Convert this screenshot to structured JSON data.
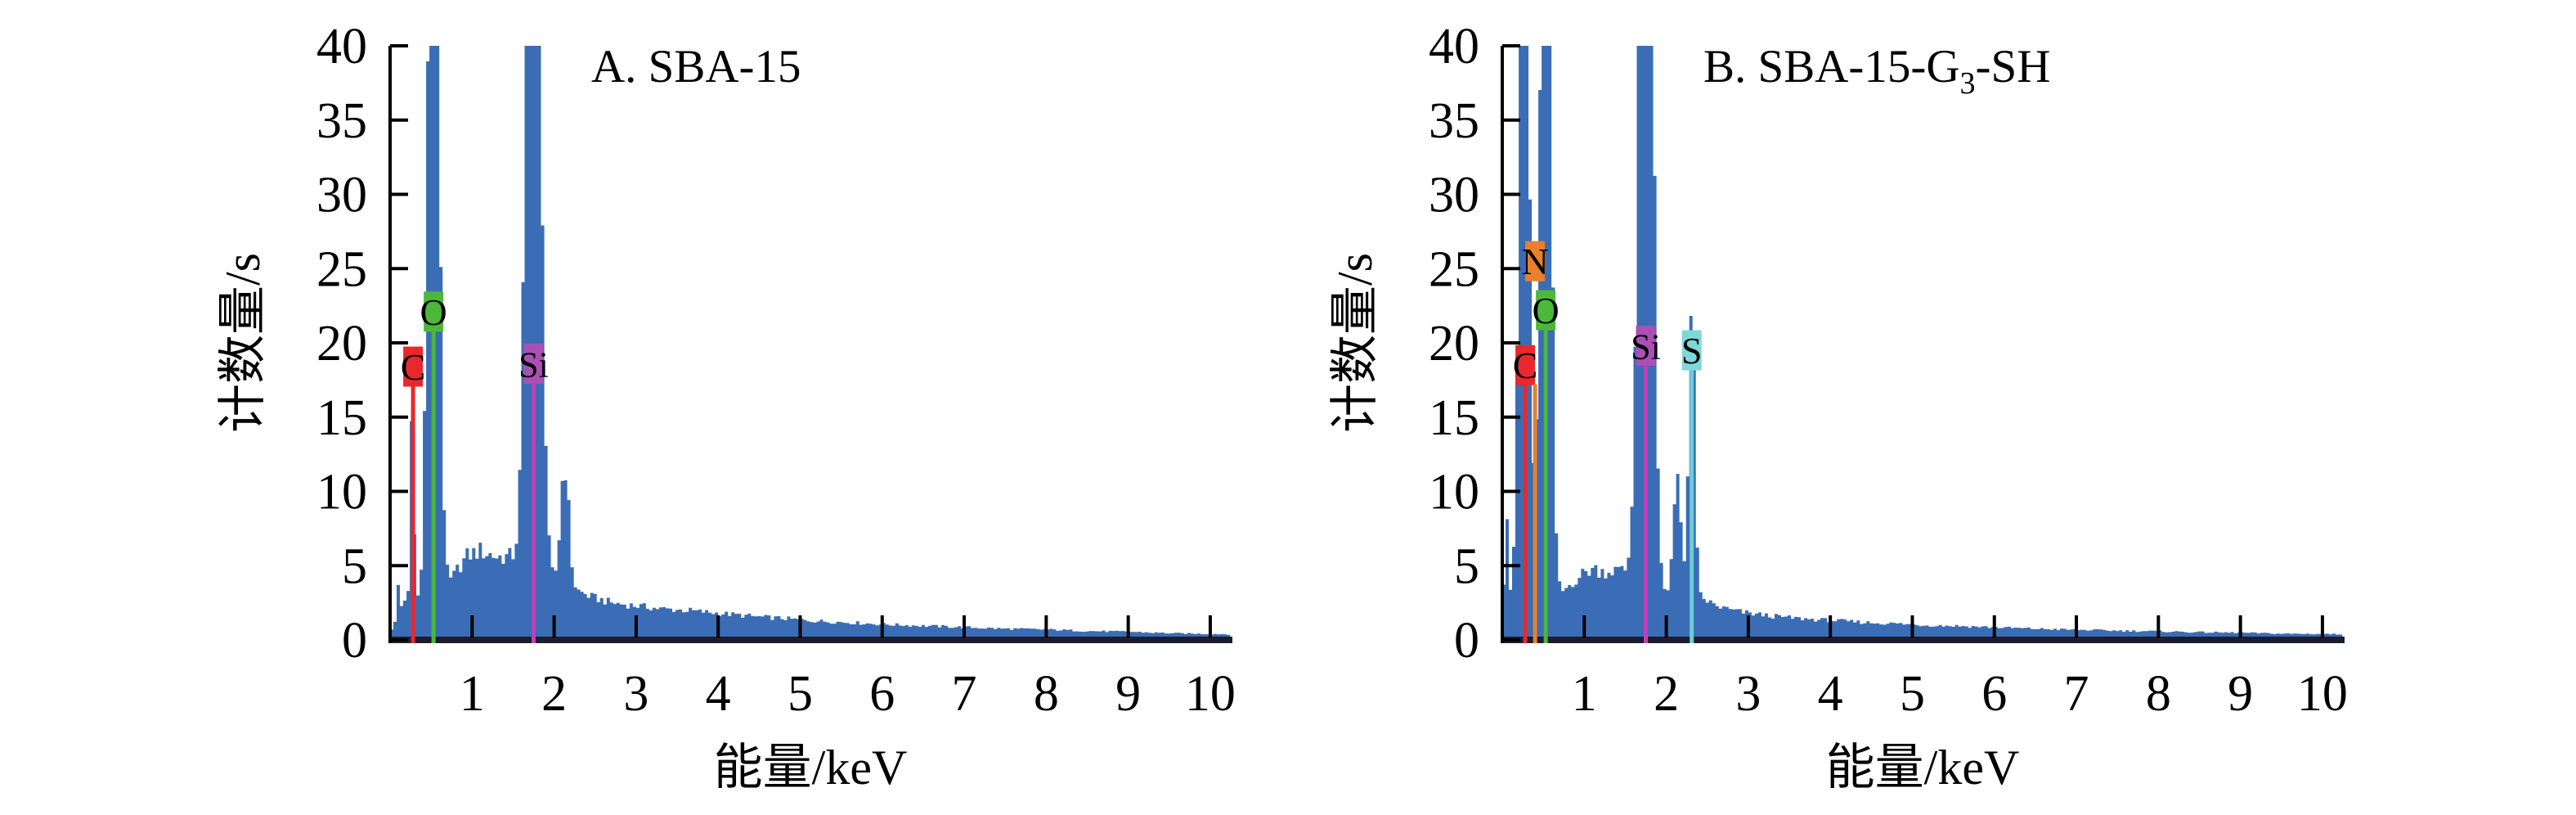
{
  "figure": {
    "background": "#ffffff",
    "spectrum_color": "#3a6db5",
    "axis_color": "#1c1c30",
    "tick_color": "#000000",
    "clip_max": 40
  },
  "chart_data": [
    {
      "type": "area",
      "panel": "A",
      "title": "A. SBA-15",
      "title_rich": [
        {
          "text": "A. SBA-15",
          "sub": false
        }
      ],
      "xlabel": "能量/keV",
      "ylabel": "计数量/s",
      "xlim": [
        0,
        10.25
      ],
      "ylim": [
        0,
        40
      ],
      "xticks": [
        1,
        2,
        3,
        4,
        5,
        6,
        7,
        8,
        9,
        10
      ],
      "yticks": [
        0,
        5,
        10,
        15,
        20,
        25,
        30,
        35,
        40
      ],
      "grid": false,
      "series_color": "#3a6db5",
      "noise_frac": 0.11,
      "element_markers": [
        {
          "symbol": "C",
          "x": 0.28,
          "box_center_y": 18.4,
          "line_top_y": 17.05,
          "line_color": "#e8282d",
          "box_color": "#e8282d",
          "text_color": "#000000"
        },
        {
          "symbol": "O",
          "x": 0.53,
          "box_center_y": 22.1,
          "line_top_y": 20.75,
          "line_color": "#4cb83a",
          "box_color": "#4cb83a",
          "text_color": "#000000"
        },
        {
          "symbol": "Si",
          "x": 1.75,
          "box_center_y": 18.6,
          "line_top_y": 17.25,
          "line_color": "#c03fb8",
          "box_color": "#ab4fb4",
          "text_color": "#000000"
        }
      ],
      "peaks": [
        {
          "element": "C",
          "x": 0.27,
          "height": 13.8,
          "sigma": 0.02
        },
        {
          "element": "O",
          "x": 0.53,
          "height": 75.0,
          "sigma": 0.058
        },
        {
          "element": "Si",
          "x": 1.75,
          "height": 90.0,
          "sigma": 0.07
        },
        {
          "element": "",
          "x": 2.13,
          "height": 8.4,
          "sigma": 0.05
        }
      ],
      "baseline_points": [
        [
          0,
          0.4
        ],
        [
          0.06,
          1.2
        ],
        [
          0.08,
          2.2
        ],
        [
          0.11,
          4.5
        ],
        [
          0.14,
          2.4
        ],
        [
          0.2,
          2.5
        ],
        [
          0.35,
          2.6
        ],
        [
          0.5,
          2.8
        ],
        [
          0.65,
          3.1
        ],
        [
          0.75,
          4.0
        ],
        [
          0.85,
          5.0
        ],
        [
          0.95,
          5.7
        ],
        [
          1.1,
          6.0
        ],
        [
          1.3,
          5.6
        ],
        [
          1.5,
          5.6
        ],
        [
          1.62,
          6.3
        ],
        [
          1.9,
          4.2
        ],
        [
          2.05,
          3.8
        ],
        [
          2.25,
          3.4
        ],
        [
          2.45,
          2.9
        ],
        [
          2.7,
          2.5
        ],
        [
          3.0,
          2.3
        ],
        [
          3.3,
          2.1
        ],
        [
          3.6,
          2.0
        ],
        [
          3.9,
          1.85
        ],
        [
          4.2,
          1.7
        ],
        [
          4.5,
          1.55
        ],
        [
          4.8,
          1.45
        ],
        [
          5.1,
          1.3
        ],
        [
          5.5,
          1.2
        ],
        [
          6.0,
          1.05
        ],
        [
          6.5,
          0.95
        ],
        [
          7.0,
          0.85
        ],
        [
          7.5,
          0.75
        ],
        [
          8.0,
          0.7
        ],
        [
          8.5,
          0.6
        ],
        [
          9.0,
          0.55
        ],
        [
          9.5,
          0.45
        ],
        [
          10.0,
          0.4
        ],
        [
          10.25,
          0.38
        ]
      ]
    },
    {
      "type": "area",
      "panel": "B",
      "title": "B. SBA-15-G3-SH",
      "title_rich": [
        {
          "text": "B. SBA-15-G",
          "sub": false
        },
        {
          "text": "3",
          "sub": true
        },
        {
          "text": "-SH",
          "sub": false
        }
      ],
      "xlabel": "能量/keV",
      "ylabel": "计数量/s",
      "xlim": [
        0,
        10.25
      ],
      "ylim": [
        0,
        40
      ],
      "xticks": [
        1,
        2,
        3,
        4,
        5,
        6,
        7,
        8,
        9,
        10
      ],
      "yticks": [
        0,
        5,
        10,
        15,
        20,
        25,
        30,
        35,
        40
      ],
      "grid": false,
      "series_color": "#3a6db5",
      "noise_frac": 0.11,
      "element_markers": [
        {
          "symbol": "C",
          "x": 0.28,
          "box_center_y": 18.5,
          "line_top_y": 17.15,
          "line_color": "#e8282d",
          "box_color": "#e8282d",
          "text_color": "#000000"
        },
        {
          "symbol": "N",
          "x": 0.4,
          "box_center_y": 25.5,
          "line_top_y": 17.2,
          "line_color": "#e8802c",
          "box_color": "#e8802c",
          "text_color": "#000000"
        },
        {
          "symbol": "O",
          "x": 0.53,
          "box_center_y": 22.2,
          "line_top_y": 20.85,
          "line_color": "#4cb83a",
          "box_color": "#4cb83a",
          "text_color": "#000000"
        },
        {
          "symbol": "Si",
          "x": 1.75,
          "box_center_y": 19.8,
          "line_top_y": 18.45,
          "line_color": "#c03fb8",
          "box_color": "#ab4fb4",
          "text_color": "#000000"
        },
        {
          "symbol": "S",
          "x": 2.31,
          "box_center_y": 19.5,
          "line_top_y": 18.15,
          "line_color": "#6fccd8",
          "box_color": "#7fd8d8",
          "text_color": "#000000"
        }
      ],
      "peaks": [
        {
          "element": "C",
          "x": 0.27,
          "height": 60.0,
          "sigma": 0.055
        },
        {
          "element": "O",
          "x": 0.53,
          "height": 72.0,
          "sigma": 0.055
        },
        {
          "element": "Si",
          "x": 1.75,
          "height": 92.0,
          "sigma": 0.068
        },
        {
          "element": "",
          "x": 2.13,
          "height": 8.8,
          "sigma": 0.045
        },
        {
          "element": "S",
          "x": 2.31,
          "height": 21.3,
          "sigma": 0.035
        }
      ],
      "baseline_points": [
        [
          0,
          0.3
        ],
        [
          0.03,
          6.0
        ],
        [
          0.05,
          10.5
        ],
        [
          0.08,
          4.0
        ],
        [
          0.12,
          2.0
        ],
        [
          0.2,
          2.2
        ],
        [
          0.4,
          2.4
        ],
        [
          0.6,
          2.6
        ],
        [
          0.7,
          3.0
        ],
        [
          0.8,
          3.6
        ],
        [
          0.9,
          4.1
        ],
        [
          1.0,
          4.5
        ],
        [
          1.1,
          4.8
        ],
        [
          1.25,
          4.6
        ],
        [
          1.4,
          4.7
        ],
        [
          1.5,
          4.6
        ],
        [
          1.62,
          5.3
        ],
        [
          1.9,
          3.1
        ],
        [
          2.05,
          2.9
        ],
        [
          2.2,
          2.9
        ],
        [
          2.45,
          2.8
        ],
        [
          2.6,
          2.3
        ],
        [
          2.8,
          2.0
        ],
        [
          3.0,
          1.8
        ],
        [
          3.3,
          1.6
        ],
        [
          3.6,
          1.45
        ],
        [
          3.9,
          1.35
        ],
        [
          4.2,
          1.25
        ],
        [
          4.5,
          1.15
        ],
        [
          4.8,
          1.1
        ],
        [
          5.1,
          1.0
        ],
        [
          5.5,
          0.95
        ],
        [
          6.0,
          0.85
        ],
        [
          6.5,
          0.75
        ],
        [
          7.0,
          0.68
        ],
        [
          7.5,
          0.62
        ],
        [
          8.0,
          0.58
        ],
        [
          8.5,
          0.52
        ],
        [
          9.0,
          0.48
        ],
        [
          9.5,
          0.42
        ],
        [
          10.0,
          0.4
        ],
        [
          10.25,
          0.38
        ]
      ]
    }
  ]
}
